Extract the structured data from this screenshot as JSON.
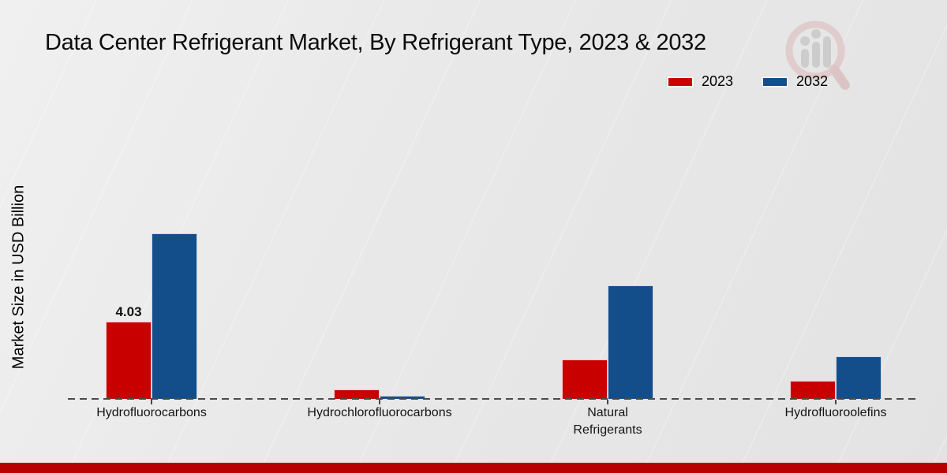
{
  "page": {
    "footer_bar_color": "#b80000",
    "background_color": "#e9e9e9",
    "axis_color": "#4a4a4a",
    "watermark_icon": "magnifier-bar-chart-logo"
  },
  "chart_data": {
    "type": "bar",
    "title": "Data Center Refrigerant Market, By Refrigerant Type, 2023 & 2032",
    "xlabel": "",
    "ylabel": "Market Size in USD Billion",
    "categories": [
      "Hydrofluorocarbons",
      "Hydrochlorofluorocarbons",
      "Natural\nRefrigerants",
      "Hydrofluoroolefins"
    ],
    "series": [
      {
        "name": "2023",
        "color": "#c80000",
        "values": [
          4.03,
          0.5,
          2.05,
          0.95
        ]
      },
      {
        "name": "2032",
        "color": "#134e8a",
        "values": [
          8.6,
          0.15,
          5.9,
          2.2
        ]
      }
    ],
    "bar_labels": [
      {
        "series_index": 0,
        "category_index": 0,
        "text": "4.03"
      }
    ],
    "ylim": [
      0,
      9.5
    ],
    "grid": false,
    "legend_position": "top-right",
    "x_axis_style": "dashed"
  }
}
